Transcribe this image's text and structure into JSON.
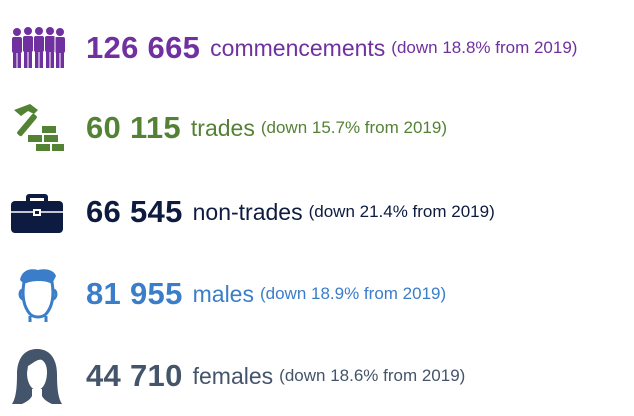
{
  "rows": [
    {
      "number": "126 665",
      "label": "commencements",
      "note": "(down 18.8% from 2019)",
      "color": "#7030a0",
      "icon": "people-group-icon"
    },
    {
      "number": "60 115",
      "label": "trades",
      "note": "(down 15.7% from  2019)",
      "color": "#548235",
      "icon": "hammer-bricks-icon"
    },
    {
      "number": "66 545",
      "label": "non-trades",
      "note": "(down 21.4% from 2019)",
      "color": "#0d1b40",
      "icon": "briefcase-icon"
    },
    {
      "number": "81 955",
      "label": "males",
      "note": "(down 18.9% from 2019)",
      "color": "#3a7dc9",
      "icon": "male-head-icon"
    },
    {
      "number": "44 710",
      "label": "females",
      "note": "(down 18.6% from 2019)",
      "color": "#44546a",
      "icon": "female-head-icon"
    }
  ]
}
